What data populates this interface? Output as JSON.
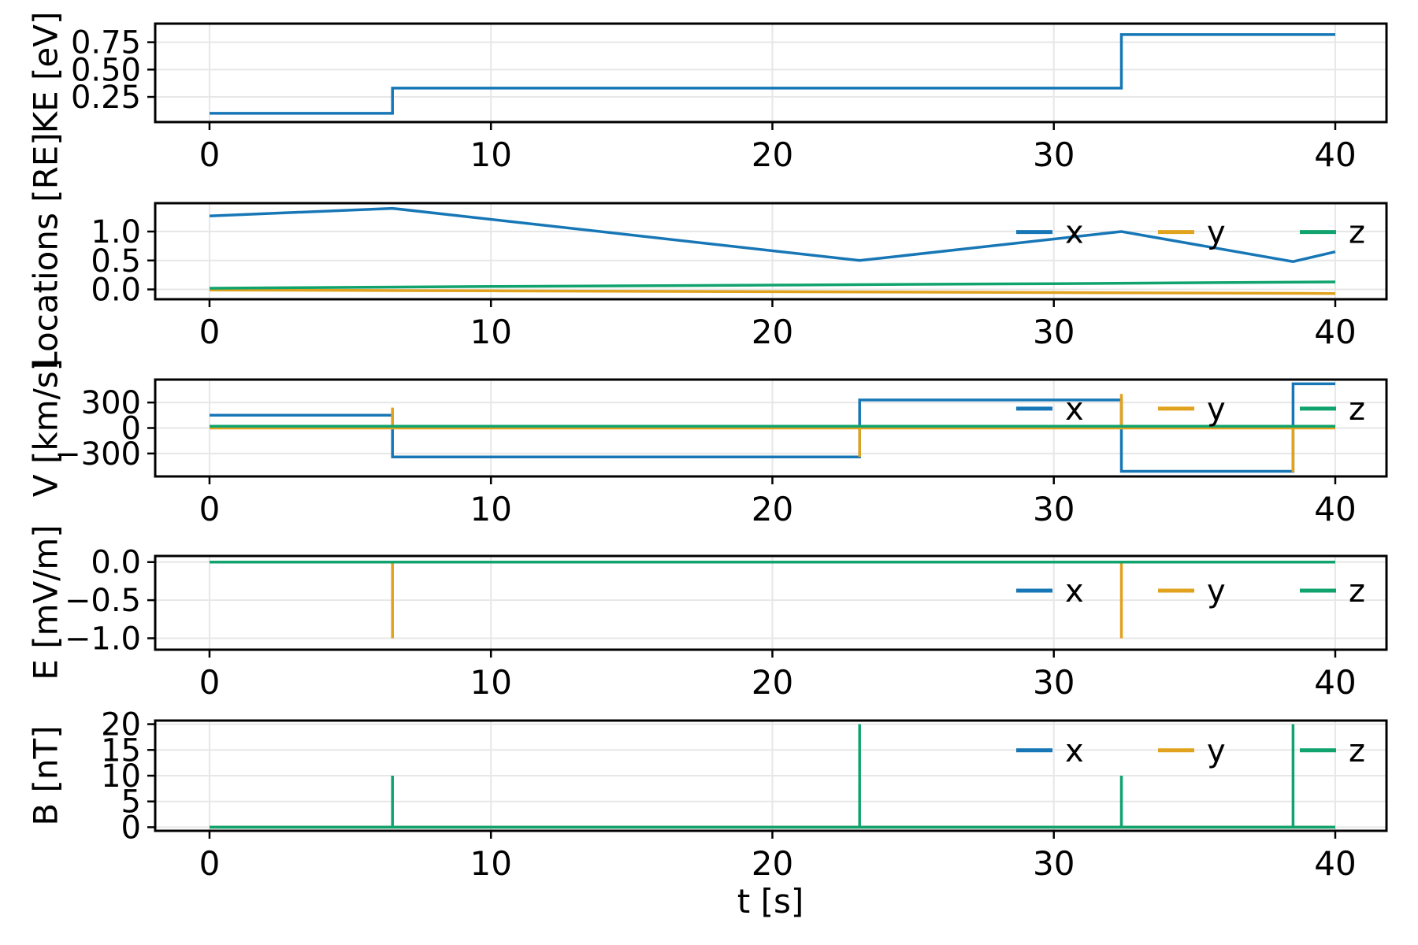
{
  "figure": {
    "xlabel": "t [s]",
    "xlim": [
      -1.93,
      41.82
    ],
    "xticks": [
      0,
      10,
      20,
      30,
      40
    ],
    "xtick_labels": [
      "0",
      "10",
      "20",
      "30",
      "40"
    ],
    "legend_labels": [
      "x",
      "y",
      "z"
    ],
    "colors": {
      "x": "#1777b6",
      "y": "#e1a21e",
      "z": "#10a36e"
    },
    "grid": true,
    "legend_position": "right-inside-no-frame"
  },
  "chart_data": [
    {
      "id": "kinetic-energy",
      "type": "line",
      "ylabel": "KE [eV]",
      "yticks": [
        0.25,
        0.5,
        0.75
      ],
      "ytick_labels": [
        "0.25",
        "0.50",
        "0.75"
      ],
      "ylim": [
        0.02,
        0.92
      ],
      "legend": false,
      "series": [
        {
          "name": "x",
          "points": [
            [
              0,
              0.1
            ],
            [
              6.5,
              0.1
            ],
            [
              6.5,
              0.33
            ],
            [
              32.4,
              0.33
            ],
            [
              32.4,
              0.82
            ],
            [
              40,
              0.82
            ]
          ]
        }
      ]
    },
    {
      "id": "locations",
      "type": "line",
      "ylabel": "Locations [RE]",
      "yticks": [
        0.0,
        0.5,
        1.0
      ],
      "ytick_labels": [
        "0.0",
        "0.5",
        "1.0"
      ],
      "ylim": [
        -0.17,
        1.49
      ],
      "legend": true,
      "series": [
        {
          "name": "x",
          "points": [
            [
              0,
              1.27
            ],
            [
              6.5,
              1.4
            ],
            [
              23.1,
              0.5
            ],
            [
              32.4,
              1.0
            ],
            [
              38.5,
              0.48
            ],
            [
              40,
              0.65
            ]
          ]
        },
        {
          "name": "y",
          "points": [
            [
              0,
              -0.01
            ],
            [
              10,
              -0.025
            ],
            [
              20,
              -0.04
            ],
            [
              30,
              -0.055
            ],
            [
              40,
              -0.07
            ]
          ]
        },
        {
          "name": "z",
          "points": [
            [
              0,
              0.02
            ],
            [
              10,
              0.05
            ],
            [
              20,
              0.075
            ],
            [
              30,
              0.1
            ],
            [
              40,
              0.13
            ]
          ]
        }
      ]
    },
    {
      "id": "velocity",
      "type": "line",
      "ylabel": "V [km/s]",
      "yticks": [
        -300,
        0,
        300
      ],
      "ytick_labels": [
        "−300",
        "0",
        "300"
      ],
      "ylim": [
        -570,
        570
      ],
      "legend": true,
      "series": [
        {
          "name": "x",
          "points": [
            [
              0,
              150
            ],
            [
              6.5,
              150
            ],
            [
              6.5,
              -340
            ],
            [
              23.1,
              -340
            ],
            [
              23.1,
              330
            ],
            [
              32.4,
              330
            ],
            [
              32.4,
              -510
            ],
            [
              38.5,
              -510
            ],
            [
              38.5,
              520
            ],
            [
              40,
              520
            ]
          ]
        },
        {
          "name": "y",
          "points": [
            [
              0,
              0
            ],
            [
              6.5,
              0
            ],
            [
              6.5,
              240
            ],
            [
              6.5,
              0
            ],
            [
              23.1,
              0
            ],
            [
              23.1,
              -340
            ],
            [
              23.1,
              0
            ],
            [
              32.4,
              0
            ],
            [
              32.4,
              400
            ],
            [
              32.4,
              0
            ],
            [
              38.5,
              0
            ],
            [
              38.5,
              -520
            ],
            [
              38.5,
              0
            ],
            [
              40,
              0
            ]
          ]
        },
        {
          "name": "z",
          "points": [
            [
              0,
              20
            ],
            [
              40,
              20
            ]
          ]
        }
      ]
    },
    {
      "id": "electric-field",
      "type": "line",
      "ylabel": "E [mV/m]",
      "yticks": [
        -1.0,
        -0.5,
        0.0
      ],
      "ytick_labels": [
        "−1.0",
        "−0.5",
        "0.0"
      ],
      "ylim": [
        -1.15,
        0.08
      ],
      "legend": true,
      "series": [
        {
          "name": "x",
          "points": [
            [
              0,
              0
            ],
            [
              40,
              0
            ]
          ]
        },
        {
          "name": "y",
          "points": [
            [
              0,
              0
            ],
            [
              6.5,
              0
            ],
            [
              6.5,
              -1.0
            ],
            [
              6.5,
              0
            ],
            [
              32.4,
              0
            ],
            [
              32.4,
              -1.0
            ],
            [
              32.4,
              0
            ],
            [
              40,
              0
            ]
          ]
        },
        {
          "name": "z",
          "points": [
            [
              0,
              0
            ],
            [
              40,
              0
            ]
          ]
        }
      ]
    },
    {
      "id": "magnetic-field",
      "type": "line",
      "ylabel": "B [nT]",
      "yticks": [
        0,
        5,
        10,
        15,
        20
      ],
      "ytick_labels": [
        "0",
        "5",
        "10",
        "15",
        "20"
      ],
      "ylim": [
        -0.7,
        20.7
      ],
      "legend": true,
      "series": [
        {
          "name": "x",
          "points": [
            [
              0,
              0
            ],
            [
              40,
              0
            ]
          ]
        },
        {
          "name": "y",
          "points": [
            [
              0,
              0
            ],
            [
              40,
              0
            ]
          ]
        },
        {
          "name": "z",
          "points": [
            [
              0,
              0
            ],
            [
              6.5,
              0
            ],
            [
              6.5,
              10
            ],
            [
              6.5,
              0
            ],
            [
              23.1,
              0
            ],
            [
              23.1,
              20
            ],
            [
              23.1,
              0
            ],
            [
              32.4,
              0
            ],
            [
              32.4,
              10
            ],
            [
              32.4,
              0
            ],
            [
              38.5,
              0
            ],
            [
              38.5,
              20
            ],
            [
              38.5,
              0
            ],
            [
              40,
              0
            ]
          ]
        }
      ]
    }
  ]
}
